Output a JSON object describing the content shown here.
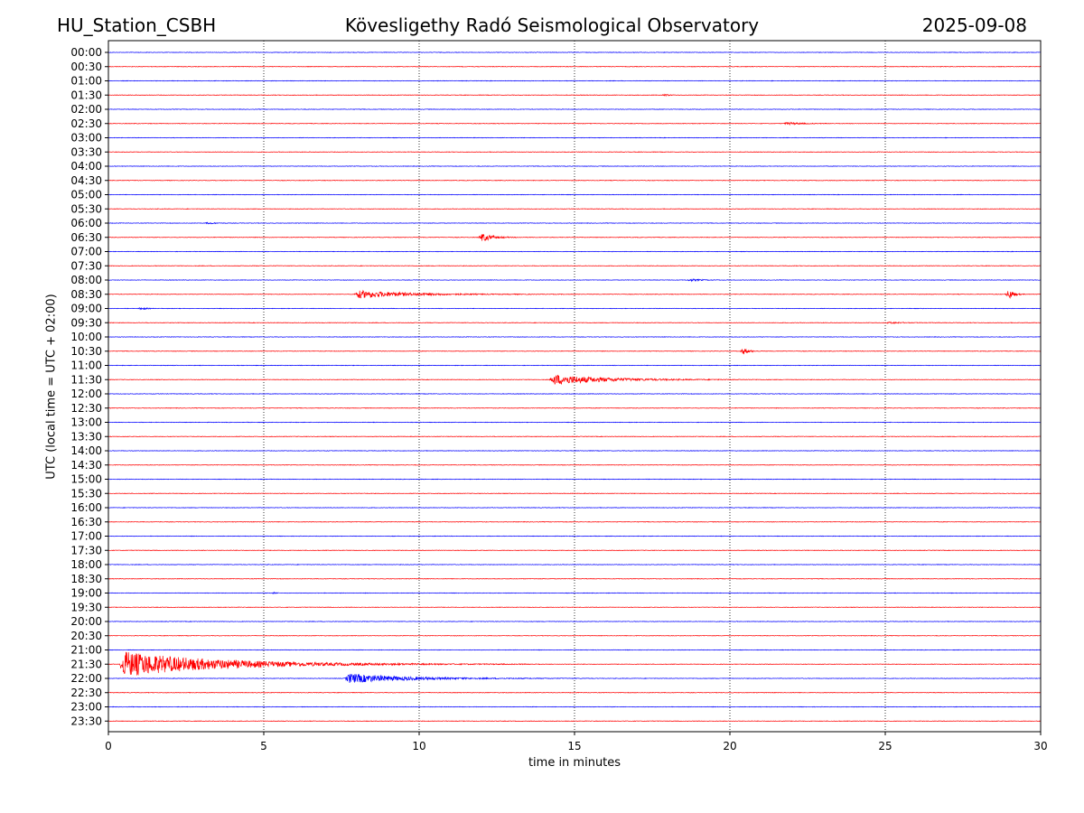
{
  "header": {
    "station": "HU_Station_CSBH",
    "observatory": "Kövesligethy Radó Seismological Observatory",
    "date": "2025-09-08"
  },
  "colors": {
    "even_trace": "#0000ff",
    "odd_trace": "#ff0000",
    "grid": "#000000",
    "axis": "#000000"
  },
  "chart_data": {
    "type": "line",
    "title": "Kövesligethy Radó Seismological Observatory",
    "xlabel": "time in minutes",
    "ylabel": "UTC (local time = UTC + 02:00)",
    "xlim": [
      0,
      30
    ],
    "x_ticks": [
      0,
      5,
      10,
      15,
      20,
      25,
      30
    ],
    "x_tick_labels": [
      "0",
      "5",
      "10",
      "15",
      "20",
      "25",
      "30"
    ],
    "x_grid": "dotted vertical lines at 5, 10, 15, 20, 25",
    "rows": [
      "00:00",
      "00:30",
      "01:00",
      "01:30",
      "02:00",
      "02:30",
      "03:00",
      "03:30",
      "04:00",
      "04:30",
      "05:00",
      "05:30",
      "06:00",
      "06:30",
      "07:00",
      "07:30",
      "08:00",
      "08:30",
      "09:00",
      "09:30",
      "10:00",
      "10:30",
      "11:00",
      "11:30",
      "12:00",
      "12:30",
      "13:00",
      "13:30",
      "14:00",
      "14:30",
      "15:00",
      "15:30",
      "16:00",
      "16:30",
      "17:00",
      "17:30",
      "18:00",
      "18:30",
      "19:00",
      "19:30",
      "20:00",
      "20:30",
      "21:00",
      "21:30",
      "22:00",
      "22:30",
      "23:00",
      "23:30"
    ],
    "row_colors": "alternating blue (full hours) and red (half hours)",
    "events": [
      {
        "row": "01:30",
        "start": 17.8,
        "duration": 0.3,
        "amplitude": 0.15
      },
      {
        "row": "02:30",
        "start": 21.7,
        "duration": 1.3,
        "amplitude": 0.18
      },
      {
        "row": "06:00",
        "start": 3.1,
        "duration": 0.5,
        "amplitude": 0.12
      },
      {
        "row": "06:30",
        "start": 11.9,
        "duration": 0.9,
        "amplitude": 0.65
      },
      {
        "row": "08:00",
        "start": 18.6,
        "duration": 0.9,
        "amplitude": 0.15
      },
      {
        "row": "08:30",
        "start": 7.9,
        "duration": 4.5,
        "amplitude": 0.6
      },
      {
        "row": "08:30",
        "start": 28.85,
        "duration": 0.4,
        "amplitude": 0.75
      },
      {
        "row": "09:00",
        "start": 0.95,
        "duration": 0.35,
        "amplitude": 0.2
      },
      {
        "row": "09:30",
        "start": 25.0,
        "duration": 1.1,
        "amplitude": 0.12
      },
      {
        "row": "10:30",
        "start": 20.3,
        "duration": 0.5,
        "amplitude": 0.45
      },
      {
        "row": "11:30",
        "start": 14.2,
        "duration": 4.5,
        "amplitude": 0.8
      },
      {
        "row": "19:00",
        "start": 5.2,
        "duration": 0.2,
        "amplitude": 0.12
      },
      {
        "row": "21:30",
        "start": 0.35,
        "duration": 8.5,
        "amplitude": 2.0
      },
      {
        "row": "22:00",
        "start": 7.6,
        "duration": 5.0,
        "amplitude": 0.75
      }
    ]
  }
}
